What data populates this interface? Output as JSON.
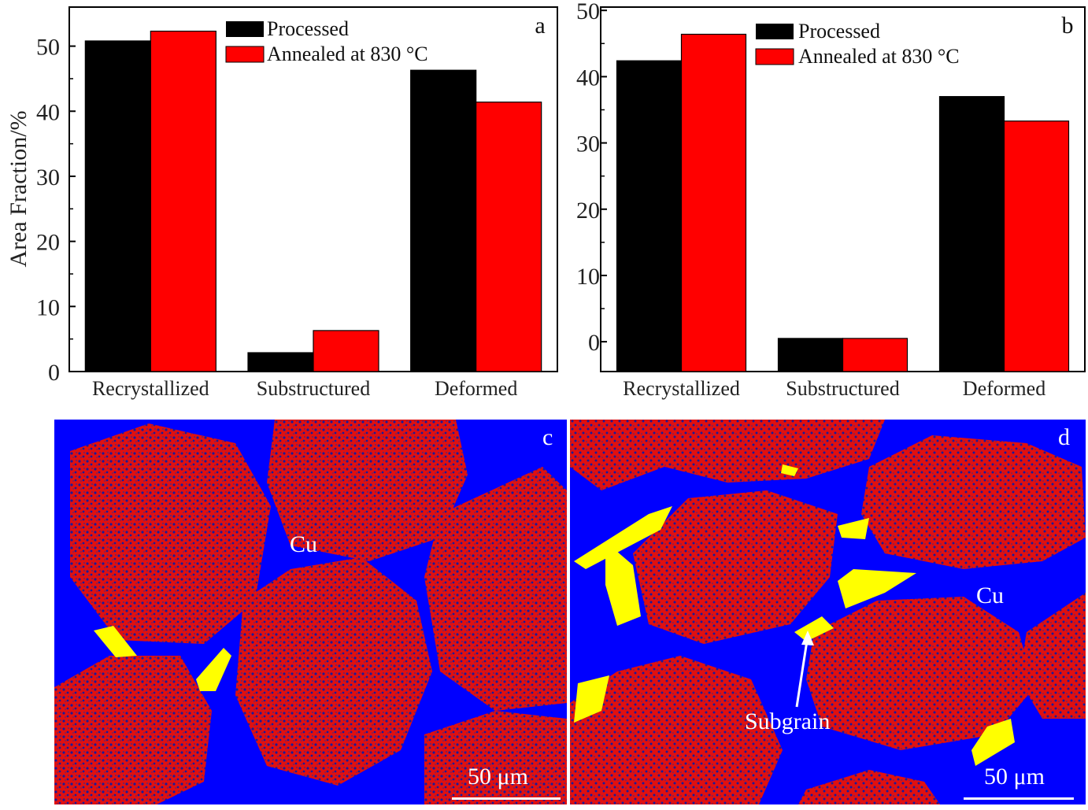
{
  "chart_data": [
    {
      "type": "bar",
      "panel_label": "a",
      "ylabel": "Area Fraction/%",
      "xlabel": "",
      "categories": [
        "Recrystallized",
        "Substructured",
        "Deformed"
      ],
      "series": [
        {
          "name": "Processed",
          "values": [
            50.8,
            2.9,
            46.3
          ]
        },
        {
          "name": "Annealed at 830 °C",
          "values": [
            52.3,
            6.3,
            41.4
          ]
        }
      ],
      "ylim": [
        0,
        56
      ],
      "yticks": [
        0,
        10,
        20,
        30,
        40,
        50
      ],
      "legend_position": "top-center",
      "grid": false
    },
    {
      "type": "bar",
      "panel_label": "b",
      "ylabel": "",
      "xlabel": "",
      "categories": [
        "Recrystallized",
        "Substructured",
        "Deformed"
      ],
      "series": [
        {
          "name": "Processed",
          "values": [
            42.4,
            0.5,
            37.0
          ]
        },
        {
          "name": "Annealed at 830 °C",
          "values": [
            46.4,
            0.5,
            33.3
          ]
        }
      ],
      "ylim": [
        -4.5,
        50.5
      ],
      "yticks": [
        0,
        10,
        20,
        30,
        40,
        50
      ],
      "legend_position": "top-center",
      "grid": false
    }
  ],
  "colors": {
    "processed": "#000000",
    "annealed": "#ff0000",
    "matrix": "#0000ff",
    "grain": "#dd1111",
    "subgrain": "#ffff00"
  },
  "maps": [
    {
      "panel_label": "c",
      "phase_label": "Cu",
      "scalebar": "50 μm"
    },
    {
      "panel_label": "d",
      "phase_label": "Cu",
      "annotation": "Subgrain",
      "scalebar": "50 μm"
    }
  ]
}
